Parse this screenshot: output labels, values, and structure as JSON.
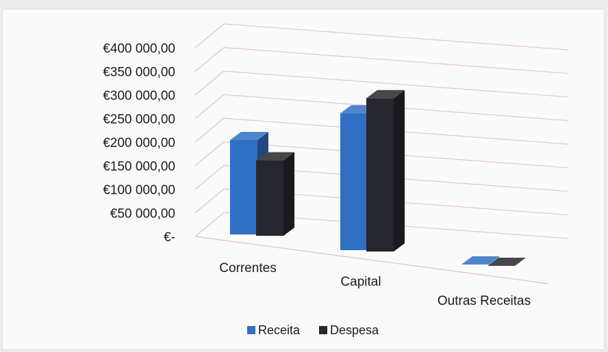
{
  "chart_data": {
    "type": "bar",
    "title": "",
    "xlabel": "",
    "ylabel": "",
    "categories": [
      "Correntes",
      "Capital",
      "Outras Receitas"
    ],
    "series": [
      {
        "name": "Receita",
        "values": [
          200000,
          290000,
          0
        ],
        "color": "#2f6fc4"
      },
      {
        "name": "Despesa",
        "values": [
          160000,
          325000,
          0
        ],
        "color": "#26262e"
      }
    ],
    "ylim": [
      0,
      400000
    ],
    "y_ticks": [
      "€400 000,00",
      "€350 000,00",
      "€300 000,00",
      "€250 000,00",
      "€200 000,00",
      "€150 000,00",
      "€100 000,00",
      "€50 000,00",
      "€-"
    ],
    "y_tick_values": [
      400000,
      350000,
      300000,
      250000,
      200000,
      150000,
      100000,
      50000,
      0
    ],
    "grid": true,
    "legend_position": "bottom",
    "style": "3d-clustered-column"
  }
}
